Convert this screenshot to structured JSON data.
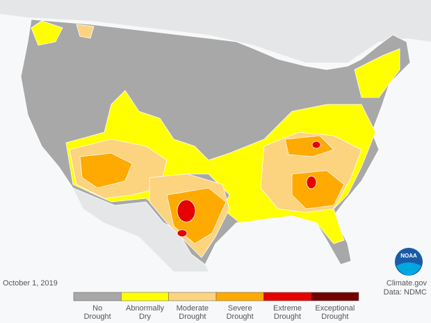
{
  "date": "October 1, 2019",
  "credit": [
    "Climate.gov",
    "Data: NDMC"
  ],
  "logo": "NOAA",
  "legend": [
    {
      "label": [
        "No",
        "Drought"
      ],
      "color": "#a8a8a8"
    },
    {
      "label": [
        "Abnormally",
        "Dry"
      ],
      "color": "#ffff00"
    },
    {
      "label": [
        "Moderate",
        "Drought"
      ],
      "color": "#fcd37f"
    },
    {
      "label": [
        "Severe",
        "Drought"
      ],
      "color": "#ffaa00"
    },
    {
      "label": [
        "Extreme",
        "Drought"
      ],
      "color": "#e60000"
    },
    {
      "label": [
        "Exceptional",
        "Drought"
      ],
      "color": "#730000"
    }
  ]
}
